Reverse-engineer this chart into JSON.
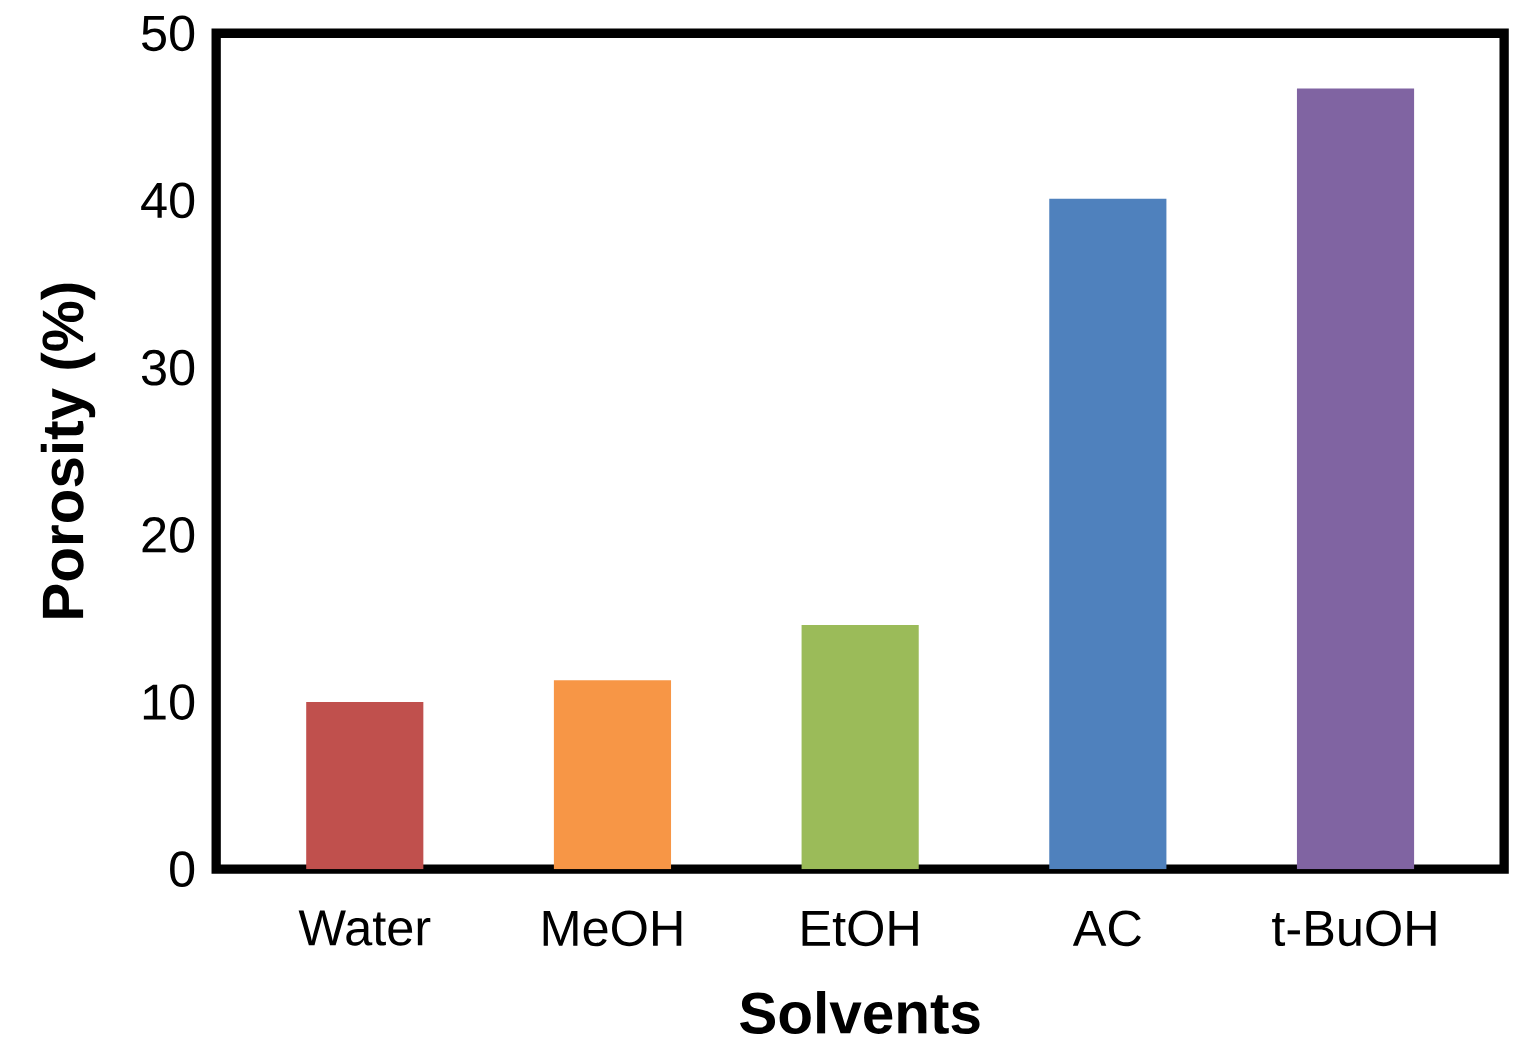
{
  "chart_data": {
    "type": "bar",
    "xlabel": "Solvents",
    "ylabel": "Porosity (%)",
    "categories": [
      "Water",
      "MeOH",
      "EtOH",
      "AC",
      "t-BuOH"
    ],
    "values": [
      10.0,
      11.3,
      14.6,
      40.1,
      46.7
    ],
    "colors": [
      "#c0504d",
      "#f79646",
      "#9bbb59",
      "#4f81bd",
      "#8064a2"
    ],
    "ylim": [
      0,
      50
    ],
    "yticks": [
      0,
      10,
      20,
      30,
      40,
      50
    ]
  }
}
